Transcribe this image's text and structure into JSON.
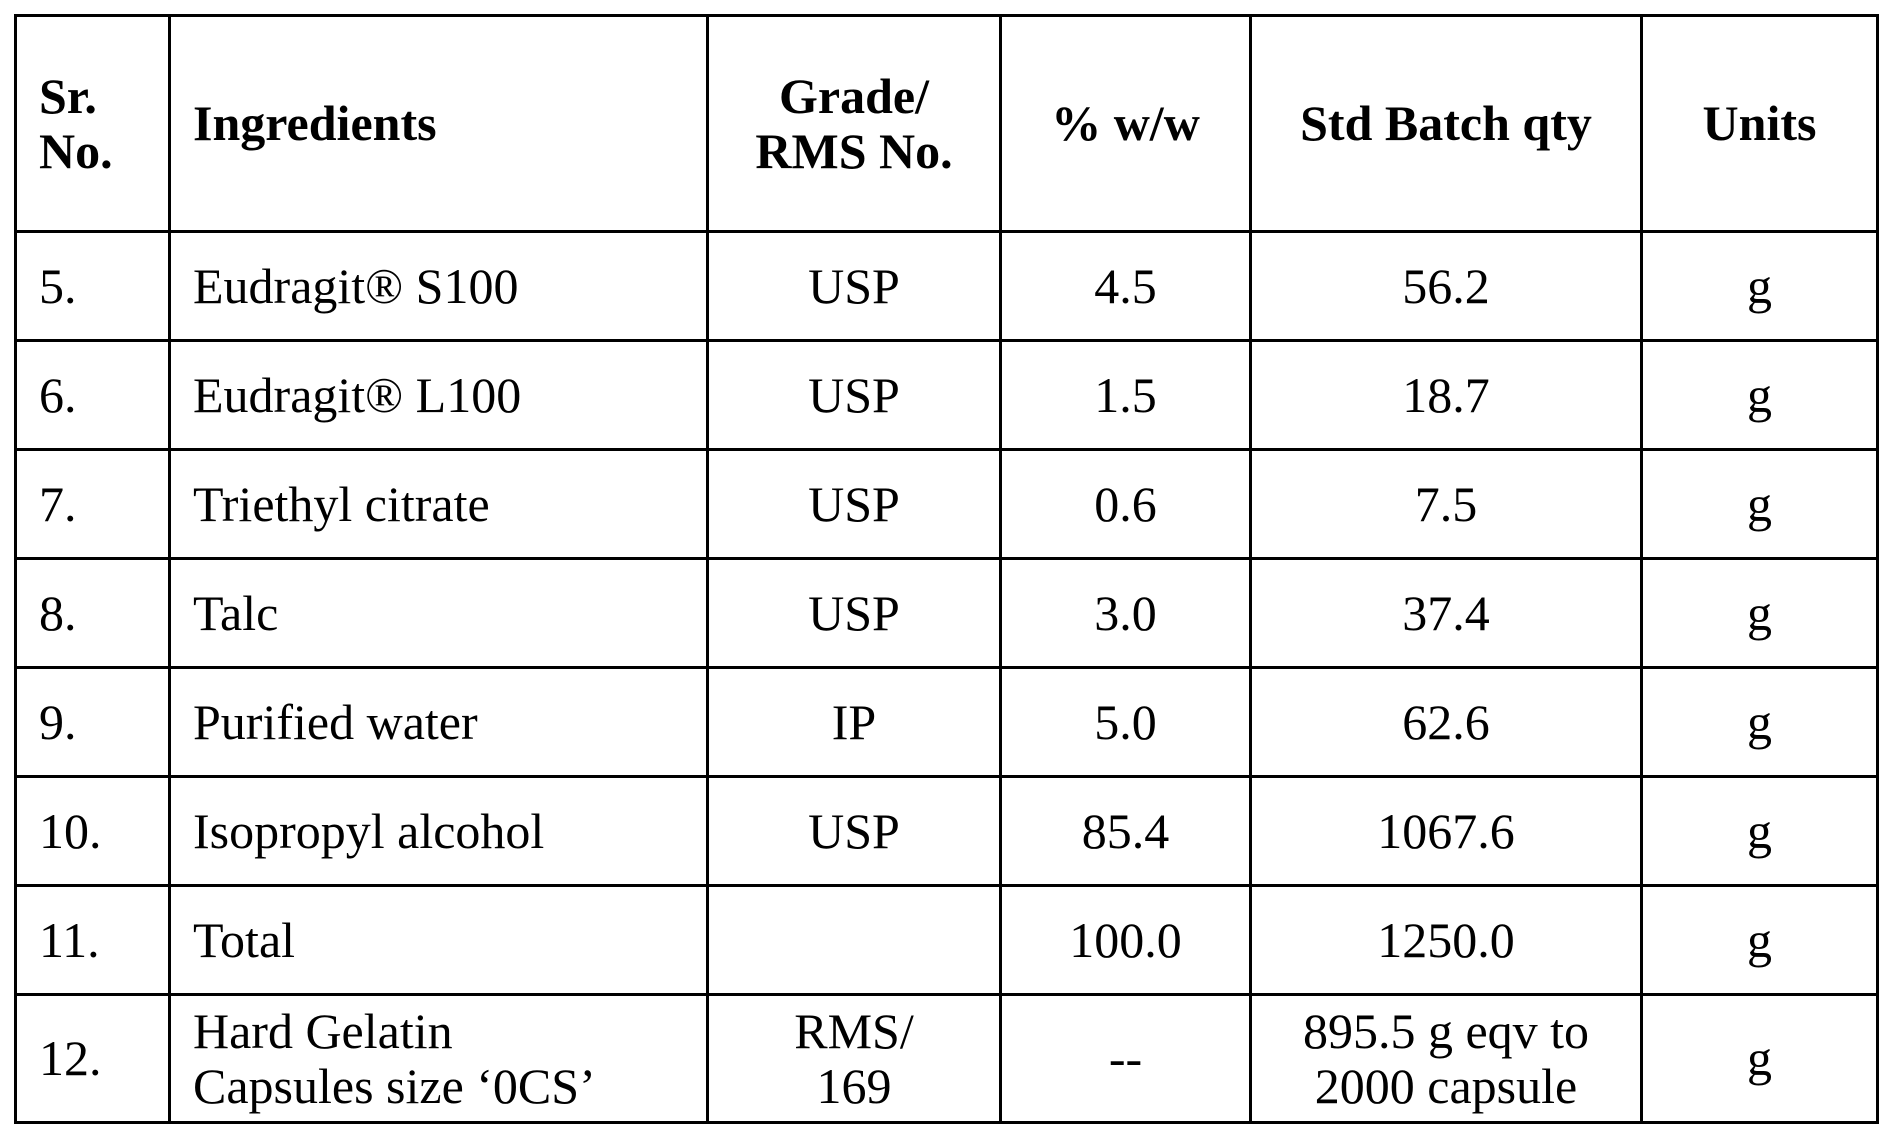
{
  "table": {
    "headers": {
      "sr_no": "Sr.\nNo.",
      "ingredients": "Ingredients",
      "grade": "Grade/\nRMS No.",
      "pct": "% w/w",
      "std_batch": "Std Batch qty",
      "units": "Units"
    },
    "rows": [
      {
        "sr": "5.",
        "ingredient": "Eudragit® S100",
        "grade": "USP",
        "pct": "4.5",
        "qty": "56.2",
        "unit": "g"
      },
      {
        "sr": "6.",
        "ingredient": "Eudragit® L100",
        "grade": "USP",
        "pct": "1.5",
        "qty": "18.7",
        "unit": "g"
      },
      {
        "sr": "7.",
        "ingredient": "Triethyl citrate",
        "grade": "USP",
        "pct": "0.6",
        "qty": "7.5",
        "unit": "g"
      },
      {
        "sr": "8.",
        "ingredient": "Talc",
        "grade": "USP",
        "pct": "3.0",
        "qty": "37.4",
        "unit": "g"
      },
      {
        "sr": "9.",
        "ingredient": "Purified water",
        "grade": "IP",
        "pct": "5.0",
        "qty": "62.6",
        "unit": "g"
      },
      {
        "sr": "10.",
        "ingredient": "Isopropyl alcohol",
        "grade": "USP",
        "pct": "85.4",
        "qty": "1067.6",
        "unit": "g"
      },
      {
        "sr": "11.",
        "ingredient": "Total",
        "grade": "",
        "pct": "100.0",
        "qty": "1250.0",
        "unit": "g"
      },
      {
        "sr": "12.",
        "ingredient": "Hard Gelatin\nCapsules size ‘0CS’",
        "grade": "RMS/\n169",
        "pct": "--",
        "qty": "895.5 g eqv to\n2000 capsule",
        "unit": "g"
      }
    ]
  }
}
